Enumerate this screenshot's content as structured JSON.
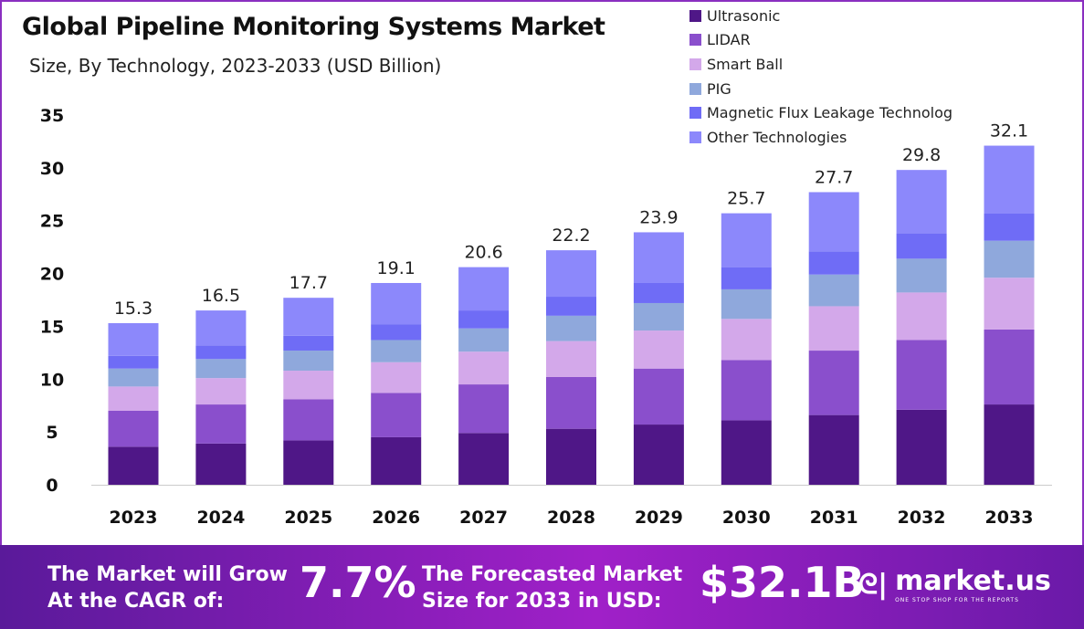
{
  "chart_data": {
    "type": "bar",
    "stacked": true,
    "title": "Global Pipeline Monitoring Systems Market",
    "subtitle": "Size, By Technology, 2023-2033 (USD Billion)",
    "xlabel": "",
    "ylabel": "",
    "ylim": [
      0,
      35
    ],
    "yticks": [
      0,
      5,
      10,
      15,
      20,
      25,
      30,
      35
    ],
    "categories": [
      "2023",
      "2024",
      "2025",
      "2026",
      "2027",
      "2028",
      "2029",
      "2030",
      "2031",
      "2032",
      "2033"
    ],
    "totals": [
      15.3,
      16.5,
      17.7,
      19.1,
      20.6,
      22.2,
      23.9,
      25.7,
      27.7,
      29.8,
      32.1
    ],
    "legend_position": "top-right",
    "series": [
      {
        "name": "Ultrasonic",
        "color": "#4f1787",
        "values": [
          3.6,
          3.9,
          4.2,
          4.5,
          4.9,
          5.3,
          5.7,
          6.1,
          6.6,
          7.1,
          7.6
        ]
      },
      {
        "name": "LIDAR",
        "color": "#8a4fcc",
        "values": [
          3.4,
          3.7,
          3.9,
          4.2,
          4.6,
          4.9,
          5.3,
          5.7,
          6.1,
          6.6,
          7.1
        ]
      },
      {
        "name": "Smart Ball",
        "color": "#d3a8ea",
        "values": [
          2.3,
          2.5,
          2.7,
          2.9,
          3.1,
          3.4,
          3.6,
          3.9,
          4.2,
          4.5,
          4.9
        ]
      },
      {
        "name": "PIG",
        "color": "#8fa8dc",
        "values": [
          1.7,
          1.8,
          1.9,
          2.1,
          2.2,
          2.4,
          2.6,
          2.8,
          3.0,
          3.2,
          3.5
        ]
      },
      {
        "name": "Magnetic Flux Leakage Technolog",
        "color": "#6f6cf6",
        "values": [
          1.2,
          1.3,
          1.4,
          1.5,
          1.7,
          1.8,
          1.9,
          2.1,
          2.2,
          2.4,
          2.6
        ]
      },
      {
        "name": "Other Technologies",
        "color": "#8c88fb",
        "values": [
          3.1,
          3.3,
          3.6,
          3.9,
          4.1,
          4.4,
          4.8,
          5.1,
          5.6,
          6.0,
          6.4
        ]
      }
    ]
  },
  "footer": {
    "cagr_label_1": "The Market will Grow",
    "cagr_label_2": "At the CAGR of:",
    "cagr_value": "7.7%",
    "forecast_label_1": "The Forecasted Market",
    "forecast_label_2": "Size for 2033 in USD:",
    "forecast_value": "$32.1B",
    "brand": "market.us",
    "brand_tagline": "ONE STOP SHOP FOR THE REPORTS"
  }
}
